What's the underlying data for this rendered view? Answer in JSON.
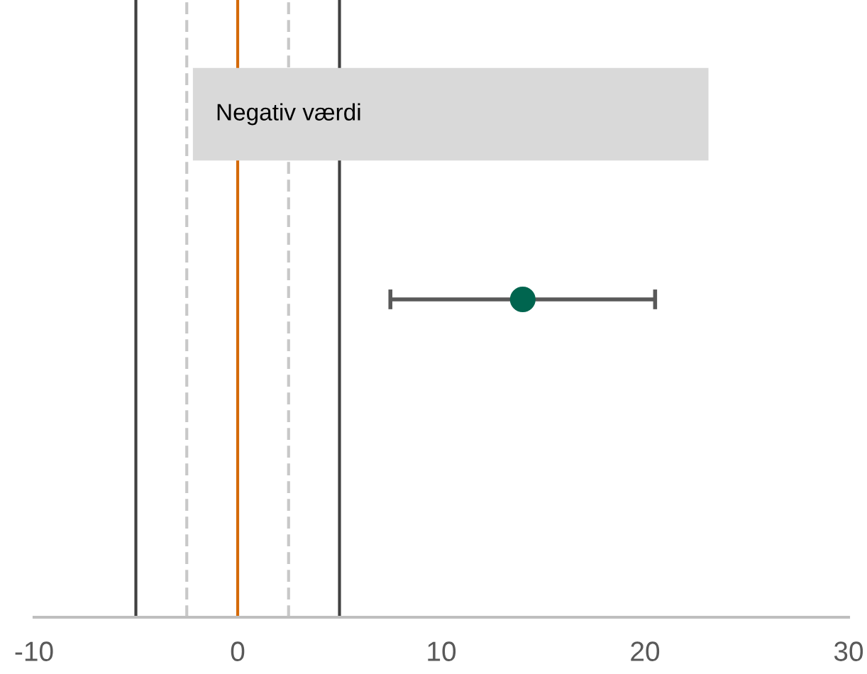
{
  "chart_data": {
    "type": "scatter",
    "orientation": "horizontal",
    "categories": [
      null
    ],
    "series": [
      {
        "color": "#00654f",
        "values": [
          14
        ],
        "errors": [
          [
            7.5,
            20.5
          ]
        ]
      }
    ],
    "xlim": [
      -10,
      30
    ],
    "xticks": [
      -10,
      0,
      10,
      20,
      30
    ],
    "ref_lines": [
      {
        "axis": "x",
        "value": -5,
        "color": "#404040",
        "line_style": "solid"
      },
      {
        "axis": "x",
        "value": -2.5,
        "color": "#c8c8c8",
        "line_style": "dashed"
      },
      {
        "axis": "x",
        "value": 0,
        "color": "#d46a0a",
        "line_style": "solid"
      },
      {
        "axis": "x",
        "value": 2.5,
        "color": "#c8c8c8",
        "line_style": "dashed"
      },
      {
        "axis": "x",
        "value": 5,
        "color": "#404040",
        "line_style": "solid"
      }
    ],
    "annotations": [
      "Negativ værdi"
    ],
    "marker": "circle"
  }
}
